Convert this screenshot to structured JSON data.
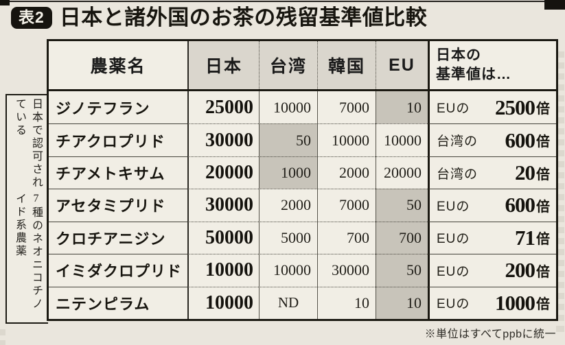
{
  "title": {
    "badge": "表2",
    "text": "日本と諸外国のお茶の残留基準値比較"
  },
  "side_label": {
    "line1": "日本で認可されている",
    "line2": "7種のネオニコチノイド系農薬"
  },
  "table": {
    "header": {
      "name": "農薬名",
      "japan": "日本",
      "taiwan": "台湾",
      "korea": "韓国",
      "eu": "EU",
      "ratio_line1": "日本の",
      "ratio_line2": "基準値は…"
    },
    "rows": [
      {
        "name": "ジノテフラン",
        "values": {
          "japan": "25000",
          "taiwan": "10000",
          "korea": "7000",
          "eu": "10"
        },
        "min": "eu",
        "ratio": {
          "prefix": "EUの",
          "value": "2500",
          "suffix": "倍"
        }
      },
      {
        "name": "チアクロプリド",
        "values": {
          "japan": "30000",
          "taiwan": "50",
          "korea": "10000",
          "eu": "10000"
        },
        "min": "taiwan",
        "ratio": {
          "prefix": "台湾の",
          "value": "600",
          "suffix": "倍"
        }
      },
      {
        "name": "チアメトキサム",
        "values": {
          "japan": "20000",
          "taiwan": "1000",
          "korea": "2000",
          "eu": "20000"
        },
        "min": "taiwan",
        "ratio": {
          "prefix": "台湾の",
          "value": "20",
          "suffix": "倍"
        }
      },
      {
        "name": "アセタミプリド",
        "values": {
          "japan": "30000",
          "taiwan": "2000",
          "korea": "7000",
          "eu": "50"
        },
        "min": "eu",
        "ratio": {
          "prefix": "EUの",
          "value": "600",
          "suffix": "倍"
        }
      },
      {
        "name": "クロチアニジン",
        "values": {
          "japan": "50000",
          "taiwan": "5000",
          "korea": "700",
          "eu": "700"
        },
        "min": "eu",
        "ratio": {
          "prefix": "EUの",
          "value": "71",
          "suffix": "倍"
        }
      },
      {
        "name": "イミダクロプリド",
        "values": {
          "japan": "10000",
          "taiwan": "10000",
          "korea": "30000",
          "eu": "50"
        },
        "min": "eu",
        "ratio": {
          "prefix": "EUの",
          "value": "200",
          "suffix": "倍"
        }
      },
      {
        "name": "ニテンピラム",
        "values": {
          "japan": "10000",
          "taiwan": "ND",
          "korea": "10",
          "eu": "10"
        },
        "min": "eu",
        "ratio": {
          "prefix": "EUの",
          "value": "1000",
          "suffix": "倍"
        }
      }
    ]
  },
  "footnote": "※単位はすべてppbに統一",
  "colors": {
    "paper_bg": "#eae6dd",
    "cell_bg": "#f1eee5",
    "header_cell_bg": "#dad6cd",
    "min_cell_bg": "#c8c4ba",
    "border": "#1b1912",
    "badge_bg": "#16140f",
    "badge_text": "#f4f1e8"
  }
}
